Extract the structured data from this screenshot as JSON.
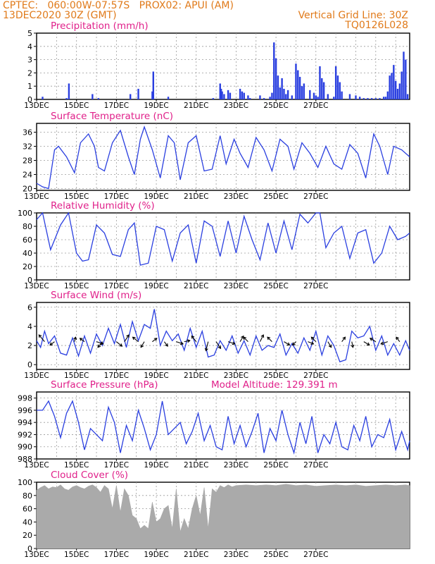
{
  "header": {
    "line1_left": "CPTEC:   060:00W-07:57S   PROX02: APUI (AM)",
    "line2_left": "13DEC2020 30Z (GMT)",
    "line1_right": "Vertical Grid Line: 30Z",
    "line2_right": "TQ0126L028"
  },
  "colors": {
    "header": "#e07a1a",
    "title": "#e0208a",
    "line": "#2a3fe0",
    "bar": "#2a3fe0",
    "cloud": "#aaaaaa",
    "grid": "#9a9a9a"
  },
  "date_ticks": [
    "13DEC",
    "15DEC",
    "17DEC",
    "19DEC",
    "21DEC",
    "23DEC",
    "25DEC",
    "27DEC"
  ],
  "chart_data": [
    {
      "type": "bar",
      "id": "precip",
      "title": "Precipitation (mm/h)",
      "ylim": [
        0,
        5
      ],
      "yticks": [
        0,
        1,
        2,
        3,
        4,
        5
      ],
      "x": [
        0.3,
        1.5,
        1.62,
        2.8,
        3.1,
        4.7,
        5.1,
        5.8,
        5.85,
        6.6,
        8.85,
        9.2,
        9.25,
        9.3,
        9.4,
        9.6,
        9.7,
        10.2,
        10.3,
        10.4,
        10.6,
        10.7,
        11.2,
        11.4,
        11.7,
        11.8,
        11.9,
        12.0,
        12.1,
        12.2,
        12.3,
        12.4,
        12.5,
        12.6,
        12.8,
        13.0,
        13.1,
        13.2,
        13.3,
        13.4,
        13.7,
        13.9,
        14.0,
        14.1,
        14.2,
        14.3,
        14.4,
        14.6,
        14.9,
        15.0,
        15.1,
        15.2,
        15.3,
        15.7,
        16.0,
        16.2,
        16.4,
        16.6,
        16.8,
        17.0,
        17.2,
        17.4,
        17.5,
        17.6,
        17.7,
        17.8,
        17.9,
        18.0,
        18.1,
        18.2,
        18.3,
        18.4,
        18.5,
        18.6
      ],
      "values": [
        0.2,
        0.1,
        1.2,
        0.4,
        0.1,
        0.4,
        0.8,
        0.6,
        2.1,
        0.2,
        0.1,
        1.2,
        0.8,
        0.6,
        0.4,
        0.7,
        0.5,
        0.8,
        0.6,
        0.5,
        0.3,
        0.1,
        0.3,
        0.1,
        0.2,
        0.5,
        4.3,
        3.1,
        1.8,
        0.9,
        1.6,
        0.8,
        0.4,
        0.7,
        0.3,
        2.7,
        2.2,
        1.7,
        1.0,
        1.2,
        0.7,
        0.5,
        0.3,
        0.2,
        2.5,
        1.6,
        1.3,
        0.4,
        0.2,
        2.5,
        1.8,
        1.3,
        0.6,
        0.4,
        0.3,
        0.2,
        0.1,
        0.1,
        0.1,
        0.1,
        0.1,
        0.2,
        0.2,
        0.6,
        1.8,
        2.0,
        2.6,
        1.4,
        0.8,
        1.2,
        2.1,
        3.6,
        3.0,
        0.4
      ]
    },
    {
      "type": "line",
      "id": "temp",
      "title": "Surface Temperature (nC)",
      "ylim": [
        19.5,
        38.5
      ],
      "yticks": [
        20,
        24,
        28,
        32,
        36
      ],
      "x": [
        0,
        0.3,
        0.6,
        0.9,
        1.1,
        1.5,
        1.9,
        2.2,
        2.6,
        2.9,
        3.1,
        3.4,
        3.8,
        4.2,
        4.6,
        4.9,
        5.2,
        5.4,
        5.8,
        6.2,
        6.6,
        6.9,
        7.2,
        7.6,
        8.0,
        8.4,
        8.8,
        9.2,
        9.5,
        9.9,
        10.2,
        10.6,
        11.0,
        11.4,
        11.8,
        12.2,
        12.6,
        12.9,
        13.3,
        13.7,
        14.1,
        14.5,
        14.9,
        15.3,
        15.7,
        16.1,
        16.5,
        16.9,
        17.2,
        17.6,
        17.9,
        18.3,
        18.7
      ],
      "values": [
        21.5,
        20.5,
        20.0,
        31.0,
        32.0,
        29.0,
        24.5,
        33.0,
        35.5,
        32.0,
        26.0,
        25.0,
        33.0,
        36.5,
        29.0,
        24.0,
        34.0,
        37.5,
        31.0,
        23.0,
        35.0,
        33.0,
        22.5,
        33.0,
        35.0,
        25.0,
        25.5,
        35.0,
        27.0,
        34.0,
        30.0,
        26.0,
        34.5,
        31.0,
        25.0,
        34.0,
        32.0,
        25.5,
        33.0,
        30.0,
        26.0,
        32.0,
        27.0,
        25.5,
        32.5,
        30.0,
        23.0,
        35.5,
        32.0,
        24.0,
        32.0,
        31.0,
        29.0
      ]
    },
    {
      "type": "line",
      "id": "rh",
      "title": "Relative Humidity (%)",
      "ylim": [
        0,
        100
      ],
      "yticks": [
        0,
        20,
        40,
        60,
        80,
        100
      ],
      "x": [
        0,
        0.3,
        0.7,
        1.2,
        1.6,
        2.0,
        2.3,
        2.6,
        3.0,
        3.4,
        3.8,
        4.2,
        4.6,
        4.9,
        5.2,
        5.6,
        6.0,
        6.4,
        6.8,
        7.2,
        7.6,
        8.0,
        8.4,
        8.8,
        9.2,
        9.6,
        10.0,
        10.4,
        10.8,
        11.2,
        11.6,
        12.0,
        12.4,
        12.8,
        13.2,
        13.6,
        14.0,
        14.2,
        14.5,
        14.9,
        15.3,
        15.7,
        16.1,
        16.5,
        16.9,
        17.3,
        17.7,
        18.1,
        18.5,
        18.7
      ],
      "values": [
        90,
        100,
        45,
        82,
        100,
        40,
        28,
        30,
        82,
        70,
        38,
        35,
        75,
        85,
        22,
        25,
        80,
        75,
        28,
        70,
        82,
        25,
        88,
        80,
        35,
        88,
        40,
        95,
        60,
        30,
        85,
        40,
        88,
        45,
        98,
        85,
        100,
        100,
        48,
        70,
        80,
        32,
        70,
        75,
        25,
        40,
        80,
        60,
        65,
        70
      ]
    },
    {
      "type": "line",
      "id": "wind",
      "title": "Surface Wind (m/s)",
      "ylim": [
        -0.5,
        6.5
      ],
      "yticks": [
        0,
        2,
        4,
        6
      ],
      "x": [
        0,
        0.2,
        0.4,
        0.6,
        0.9,
        1.2,
        1.5,
        1.8,
        2.1,
        2.4,
        2.7,
        3.0,
        3.3,
        3.6,
        3.9,
        4.2,
        4.5,
        4.8,
        5.1,
        5.4,
        5.7,
        5.9,
        6.2,
        6.5,
        6.8,
        7.1,
        7.4,
        7.7,
        8.0,
        8.3,
        8.6,
        8.9,
        9.2,
        9.5,
        9.8,
        10.1,
        10.4,
        10.7,
        11.0,
        11.3,
        11.6,
        11.9,
        12.2,
        12.5,
        12.8,
        13.1,
        13.4,
        13.7,
        14.0,
        14.3,
        14.6,
        14.9,
        15.2,
        15.5,
        15.8,
        16.1,
        16.4,
        16.7,
        17.0,
        17.3,
        17.6,
        17.9,
        18.2,
        18.5,
        18.7
      ],
      "values": [
        2.5,
        1.8,
        3.5,
        2.2,
        3.0,
        1.2,
        1.0,
        2.8,
        0.9,
        3.0,
        1.2,
        3.2,
        2.0,
        3.8,
        2.2,
        4.2,
        1.8,
        4.5,
        2.5,
        4.2,
        3.8,
        5.8,
        2.0,
        3.5,
        2.5,
        3.2,
        1.5,
        3.8,
        1.8,
        3.5,
        0.8,
        1.0,
        2.5,
        1.5,
        3.0,
        1.2,
        2.5,
        1.0,
        3.0,
        1.5,
        2.0,
        1.8,
        3.2,
        1.0,
        2.2,
        1.2,
        2.8,
        1.5,
        3.5,
        1.0,
        3.0,
        2.0,
        0.3,
        0.5,
        3.5,
        2.8,
        3.0,
        4.0,
        1.5,
        3.0,
        1.0,
        2.2,
        1.0,
        2.5,
        1.5
      ],
      "vectors": [
        {
          "x": 0.4,
          "u": -0.5,
          "v": 0.6
        },
        {
          "x": 0.9,
          "u": -0.4,
          "v": -0.3
        },
        {
          "x": 1.9,
          "u": 0.1,
          "v": 0.4
        },
        {
          "x": 2.4,
          "u": -0.4,
          "v": 0.3
        },
        {
          "x": 3.0,
          "u": 0.6,
          "v": -0.2
        },
        {
          "x": 3.3,
          "u": -0.4,
          "v": -0.5
        },
        {
          "x": 4.0,
          "u": 0.5,
          "v": -0.4
        },
        {
          "x": 4.4,
          "u": 0.4,
          "v": 0.6
        },
        {
          "x": 5.1,
          "u": -0.5,
          "v": 0.4
        },
        {
          "x": 5.4,
          "u": -0.3,
          "v": -0.5
        },
        {
          "x": 5.8,
          "u": 0.4,
          "v": 0.3
        },
        {
          "x": 6.4,
          "u": 0.3,
          "v": -0.4
        },
        {
          "x": 7.0,
          "u": 0.6,
          "v": -0.2
        },
        {
          "x": 7.4,
          "u": 0.5,
          "v": 0.1
        },
        {
          "x": 8.0,
          "u": -0.4,
          "v": 0.5
        },
        {
          "x": 8.6,
          "u": -0.2,
          "v": -0.8
        },
        {
          "x": 9.0,
          "u": 0.4,
          "v": -0.6
        },
        {
          "x": 9.6,
          "u": 0.6,
          "v": -0.2
        },
        {
          "x": 10.2,
          "u": 0.3,
          "v": 0.5
        },
        {
          "x": 10.6,
          "u": -0.4,
          "v": 0.4
        },
        {
          "x": 11.2,
          "u": 0.3,
          "v": 0.6
        },
        {
          "x": 11.8,
          "u": -0.4,
          "v": 0.4
        },
        {
          "x": 12.4,
          "u": 0.5,
          "v": -0.3
        },
        {
          "x": 13.0,
          "u": -0.3,
          "v": -0.3
        },
        {
          "x": 13.6,
          "u": 0.5,
          "v": -0.2
        },
        {
          "x": 14.0,
          "u": -0.4,
          "v": 0.4
        },
        {
          "x": 14.6,
          "u": 0.3,
          "v": -0.5
        },
        {
          "x": 15.3,
          "u": 0.3,
          "v": 0.4
        },
        {
          "x": 15.8,
          "u": 0.1,
          "v": -0.5
        },
        {
          "x": 16.4,
          "u": 0.5,
          "v": -0.3
        },
        {
          "x": 17.0,
          "u": -0.5,
          "v": 0.3
        },
        {
          "x": 17.6,
          "u": -0.6,
          "v": -0.2
        },
        {
          "x": 18.2,
          "u": -0.3,
          "v": 0.4
        }
      ]
    },
    {
      "type": "line",
      "id": "press",
      "title": "Surface Pressure (hPa)",
      "annotation": "Model Altitude: 129.391  m",
      "ylim": [
        988,
        999
      ],
      "yticks": [
        988,
        990,
        992,
        994,
        996,
        998
      ],
      "x": [
        0,
        0.3,
        0.6,
        0.9,
        1.2,
        1.5,
        1.8,
        2.1,
        2.4,
        2.7,
        3.0,
        3.3,
        3.6,
        3.9,
        4.2,
        4.5,
        4.8,
        5.1,
        5.4,
        5.7,
        6.0,
        6.3,
        6.6,
        6.9,
        7.2,
        7.5,
        7.8,
        8.1,
        8.4,
        8.7,
        9.0,
        9.3,
        9.6,
        9.9,
        10.2,
        10.5,
        10.8,
        11.1,
        11.4,
        11.7,
        12.0,
        12.3,
        12.6,
        12.9,
        13.2,
        13.5,
        13.8,
        14.1,
        14.4,
        14.7,
        15.0,
        15.3,
        15.6,
        15.9,
        16.2,
        16.5,
        16.8,
        17.1,
        17.4,
        17.7,
        18.0,
        18.3,
        18.6,
        18.7
      ],
      "values": [
        996,
        996,
        997.5,
        995,
        991.5,
        995.5,
        997.5,
        994,
        989.5,
        993,
        992,
        991,
        996.5,
        994,
        989,
        993.5,
        991,
        996,
        993,
        989.5,
        992,
        997.5,
        992,
        993,
        994,
        990.5,
        992.5,
        995.5,
        991,
        993.5,
        990,
        989.5,
        995,
        990.5,
        993.5,
        990,
        992.5,
        995.5,
        989,
        993,
        991,
        996,
        992,
        989,
        994,
        990.5,
        995,
        989,
        992,
        990.5,
        994,
        990,
        989.5,
        993.5,
        991,
        995,
        990,
        992,
        991.5,
        994.5,
        989.5,
        992.5,
        989.5,
        991
      ]
    },
    {
      "type": "area",
      "id": "cloud",
      "title": "Cloud Cover (%)",
      "ylim": [
        0,
        100
      ],
      "yticks": [
        0,
        20,
        40,
        60,
        80,
        100
      ],
      "x": [
        0,
        0.2,
        0.4,
        0.6,
        0.8,
        1.0,
        1.2,
        1.4,
        1.6,
        1.8,
        2.0,
        2.2,
        2.4,
        2.6,
        2.8,
        3.0,
        3.2,
        3.4,
        3.6,
        3.8,
        4.0,
        4.2,
        4.4,
        4.6,
        4.8,
        5.0,
        5.2,
        5.4,
        5.6,
        5.8,
        6.0,
        6.2,
        6.4,
        6.6,
        6.8,
        7.0,
        7.2,
        7.4,
        7.6,
        7.8,
        8.0,
        8.2,
        8.4,
        8.6,
        8.8,
        9.0,
        9.2,
        9.4,
        9.6,
        9.8,
        10.0,
        10.5,
        11.0,
        11.5,
        12.0,
        12.5,
        13.0,
        13.5,
        14.0,
        14.5,
        15.0,
        15.5,
        16.0,
        16.5,
        17.0,
        17.5,
        18.0,
        18.5,
        18.7
      ],
      "values": [
        88,
        92,
        95,
        90,
        93,
        92,
        96,
        90,
        88,
        93,
        95,
        92,
        90,
        94,
        96,
        92,
        85,
        95,
        90,
        60,
        95,
        55,
        90,
        80,
        50,
        45,
        30,
        35,
        30,
        70,
        40,
        45,
        60,
        65,
        30,
        90,
        25,
        45,
        30,
        60,
        80,
        50,
        92,
        30,
        90,
        85,
        95,
        92,
        96,
        93,
        95,
        96,
        95,
        96,
        95,
        97,
        95,
        96,
        94,
        95,
        96,
        95,
        96,
        94,
        95,
        96,
        95,
        96,
        95
      ]
    }
  ]
}
